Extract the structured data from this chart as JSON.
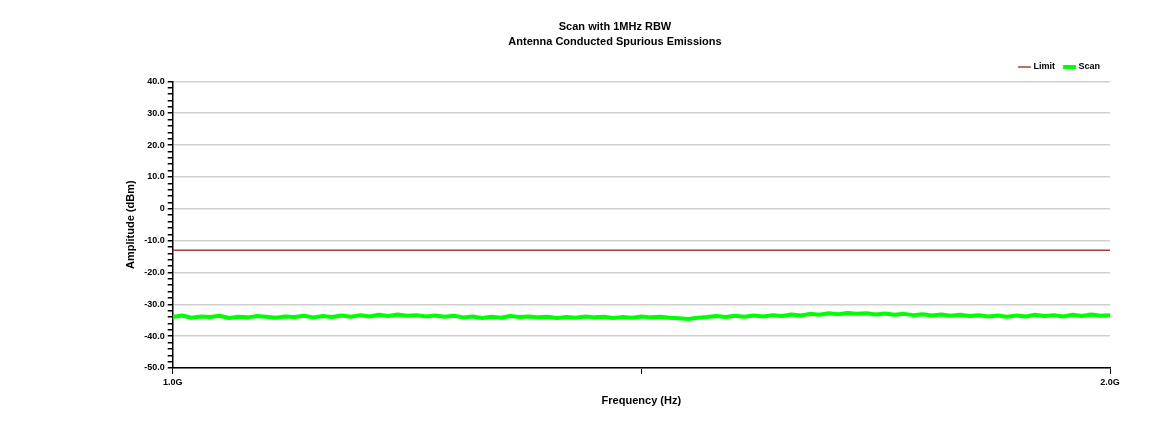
{
  "chart_data": {
    "type": "line",
    "title": "Scan with 1MHz RBW",
    "subtitle": "Antenna Conducted Spurious Emissions",
    "xlabel": "Frequency (Hz)",
    "ylabel": "Amplitude (dBm)",
    "xlim": [
      1,
      2
    ],
    "xticks": [
      {
        "value": 1,
        "label": "1.0G"
      },
      {
        "value": 1.5,
        "label": null
      },
      {
        "value": 2,
        "label": "2.0G"
      }
    ],
    "ylim": [
      -50,
      40
    ],
    "yticks": [
      {
        "value": -50,
        "label": "-50.0"
      },
      {
        "value": -48,
        "label": null
      },
      {
        "value": -46,
        "label": null
      },
      {
        "value": -44,
        "label": null
      },
      {
        "value": -42,
        "label": null
      },
      {
        "value": -40,
        "label": "-40.0"
      },
      {
        "value": -38,
        "label": null
      },
      {
        "value": -36,
        "label": null
      },
      {
        "value": -34,
        "label": null
      },
      {
        "value": -32,
        "label": null
      },
      {
        "value": -30,
        "label": "-30.0"
      },
      {
        "value": -28,
        "label": null
      },
      {
        "value": -26,
        "label": null
      },
      {
        "value": -24,
        "label": null
      },
      {
        "value": -22,
        "label": null
      },
      {
        "value": -20,
        "label": "-20.0"
      },
      {
        "value": -18,
        "label": null
      },
      {
        "value": -16,
        "label": null
      },
      {
        "value": -14,
        "label": null
      },
      {
        "value": -12,
        "label": null
      },
      {
        "value": -10,
        "label": "-10.0"
      },
      {
        "value": -8,
        "label": null
      },
      {
        "value": -6,
        "label": null
      },
      {
        "value": -4,
        "label": null
      },
      {
        "value": -2,
        "label": null
      },
      0,
      {
        "value": 2,
        "label": null
      },
      {
        "value": 4,
        "label": null
      },
      {
        "value": 6,
        "label": null
      },
      {
        "value": 8,
        "label": null
      },
      {
        "value": 10,
        "label": "10.0"
      },
      {
        "value": 12,
        "label": null
      },
      {
        "value": 14,
        "label": null
      },
      {
        "value": 16,
        "label": null
      },
      {
        "value": 18,
        "label": null
      },
      {
        "value": 20,
        "label": "20.0"
      },
      {
        "value": 22,
        "label": null
      },
      {
        "value": 24,
        "label": null
      },
      {
        "value": 26,
        "label": null
      },
      {
        "value": 28,
        "label": null
      },
      {
        "value": 30,
        "label": "30.0"
      },
      {
        "value": 32,
        "label": null
      },
      {
        "value": 34,
        "label": null
      },
      {
        "value": 36,
        "label": null
      },
      {
        "value": 38,
        "label": null
      },
      {
        "value": 40,
        "label": "40.0"
      }
    ],
    "grid": "y",
    "legend": "top right",
    "marker": "none",
    "line_style": "solid",
    "series": [
      {
        "name": "Limit",
        "color": "#a04040",
        "x": [
          1,
          2
        ],
        "values": [
          -13,
          -13
        ]
      },
      {
        "name": "Scan",
        "color": "#00ff00",
        "x": [
          1,
          1.01,
          1.02,
          1.03,
          1.04,
          1.05,
          1.06,
          1.07,
          1.08,
          1.09,
          1.1,
          1.11,
          1.12,
          1.13,
          1.14,
          1.15,
          1.16,
          1.17,
          1.18,
          1.19,
          1.2,
          1.21,
          1.22,
          1.23,
          1.24,
          1.25,
          1.26,
          1.27,
          1.28,
          1.29,
          1.3,
          1.31,
          1.32,
          1.33,
          1.34,
          1.35,
          1.36,
          1.37,
          1.38,
          1.39,
          1.4,
          1.41,
          1.42,
          1.43,
          1.44,
          1.45,
          1.46,
          1.47,
          1.48,
          1.49,
          1.5,
          1.51,
          1.52,
          1.53,
          1.54,
          1.55,
          1.56,
          1.57,
          1.58,
          1.59,
          1.6,
          1.61,
          1.62,
          1.63,
          1.64,
          1.65,
          1.66,
          1.67,
          1.68,
          1.69,
          1.7,
          1.71,
          1.72,
          1.73,
          1.74,
          1.75,
          1.76,
          1.77,
          1.78,
          1.79,
          1.8,
          1.81,
          1.82,
          1.83,
          1.84,
          1.85,
          1.86,
          1.87,
          1.88,
          1.89,
          1.9,
          1.91,
          1.92,
          1.93,
          1.94,
          1.95,
          1.96,
          1.97,
          1.98,
          1.99,
          2
        ],
        "values": [
          -34,
          -33.5,
          -34.2,
          -33.8,
          -34,
          -33.6,
          -34.3,
          -33.9,
          -34.1,
          -33.7,
          -33.9,
          -34.2,
          -33.8,
          -34,
          -33.6,
          -34.1,
          -33.7,
          -34,
          -33.5,
          -33.9,
          -33.4,
          -33.8,
          -33.3,
          -33.7,
          -33.2,
          -33.6,
          -33.4,
          -33.8,
          -33.5,
          -33.9,
          -33.6,
          -34.1,
          -33.8,
          -34.3,
          -33.9,
          -34.2,
          -33.7,
          -34,
          -33.8,
          -34.1,
          -33.9,
          -34.3,
          -34,
          -34.2,
          -33.8,
          -34.1,
          -33.9,
          -34.3,
          -34,
          -34.2,
          -33.8,
          -34.1,
          -33.9,
          -34.2,
          -34.4,
          -34.6,
          -34.2,
          -34,
          -33.7,
          -34,
          -33.6,
          -33.9,
          -33.5,
          -33.8,
          -33.4,
          -33.7,
          -33.2,
          -33.5,
          -33,
          -33.3,
          -32.8,
          -33.1,
          -32.7,
          -33,
          -32.8,
          -33.2,
          -32.9,
          -33.3,
          -33,
          -33.4,
          -33.1,
          -33.5,
          -33.2,
          -33.6,
          -33.3,
          -33.7,
          -33.4,
          -33.8,
          -33.5,
          -33.9,
          -33.5,
          -33.8,
          -33.3,
          -33.7,
          -33.4,
          -33.8,
          -33.3,
          -33.7,
          -33.2,
          -33.6,
          -33.4
        ]
      }
    ]
  }
}
